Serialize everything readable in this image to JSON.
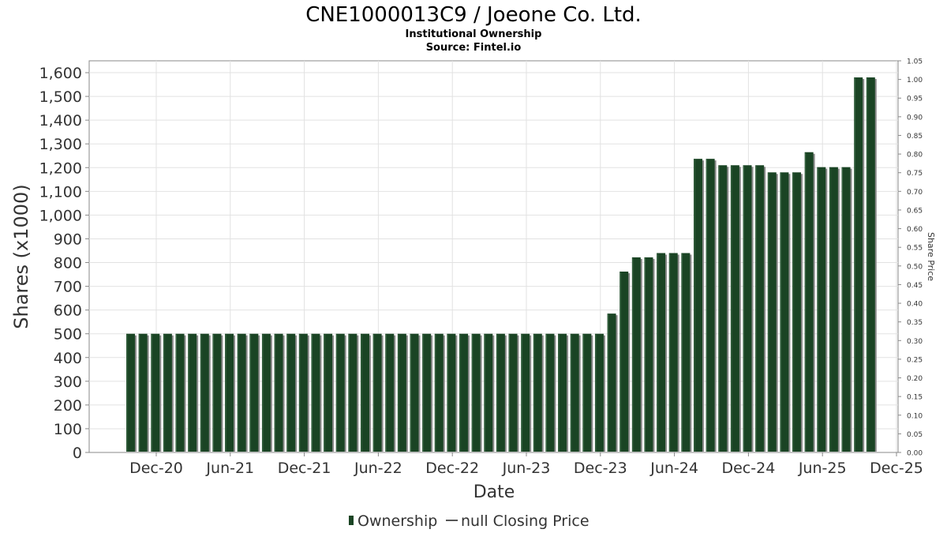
{
  "title": "CNE1000013C9 / Joeone Co. Ltd.",
  "subtitle": "Institutional Ownership",
  "source": "Source: Fintel.io",
  "chart_data": {
    "type": "bar",
    "title": "CNE1000013C9 / Joeone Co. Ltd.",
    "subtitle": "Institutional Ownership",
    "xlabel": "Date",
    "ylabel": "Shares (x1000)",
    "y2label": "Share Price",
    "ylim": [
      0,
      1650
    ],
    "y2lim": [
      0,
      1.05
    ],
    "grid": true,
    "legend_position": "bottom",
    "x_ticks": [
      "Dec-20",
      "Jun-21",
      "Dec-21",
      "Jun-22",
      "Dec-22",
      "Jun-23",
      "Dec-23",
      "Jun-24",
      "Dec-24",
      "Jun-25",
      "Dec-25"
    ],
    "y_ticks": [
      "0",
      "100",
      "200",
      "300",
      "400",
      "500",
      "600",
      "700",
      "800",
      "900",
      "1,000",
      "1,100",
      "1,200",
      "1,300",
      "1,400",
      "1,500",
      "1,600"
    ],
    "y2_ticks": [
      "0.00",
      "0.05",
      "0.10",
      "0.15",
      "0.20",
      "0.25",
      "0.30",
      "0.35",
      "0.40",
      "0.45",
      "0.50",
      "0.55",
      "0.60",
      "0.65",
      "0.70",
      "0.75",
      "0.80",
      "0.85",
      "0.90",
      "0.95",
      "1.00",
      "1.05"
    ],
    "series": [
      {
        "name": "Ownership",
        "color": "#1a4424",
        "values": [
          500,
          500,
          500,
          500,
          500,
          500,
          500,
          500,
          500,
          500,
          500,
          500,
          500,
          500,
          500,
          500,
          500,
          500,
          500,
          500,
          500,
          500,
          500,
          500,
          500,
          500,
          500,
          500,
          500,
          500,
          500,
          500,
          500,
          500,
          500,
          500,
          500,
          500,
          500,
          585,
          762,
          822,
          822,
          840,
          840,
          840,
          1237,
          1237,
          1210,
          1210,
          1210,
          1210,
          1180,
          1180,
          1180,
          1265,
          1202,
          1202,
          1202,
          1580,
          1580
        ]
      }
    ],
    "legend": [
      {
        "label": "Ownership",
        "kind": "bar",
        "color": "#1a4424"
      },
      {
        "label": "null Closing Price",
        "kind": "line",
        "color": "#555555"
      }
    ]
  }
}
